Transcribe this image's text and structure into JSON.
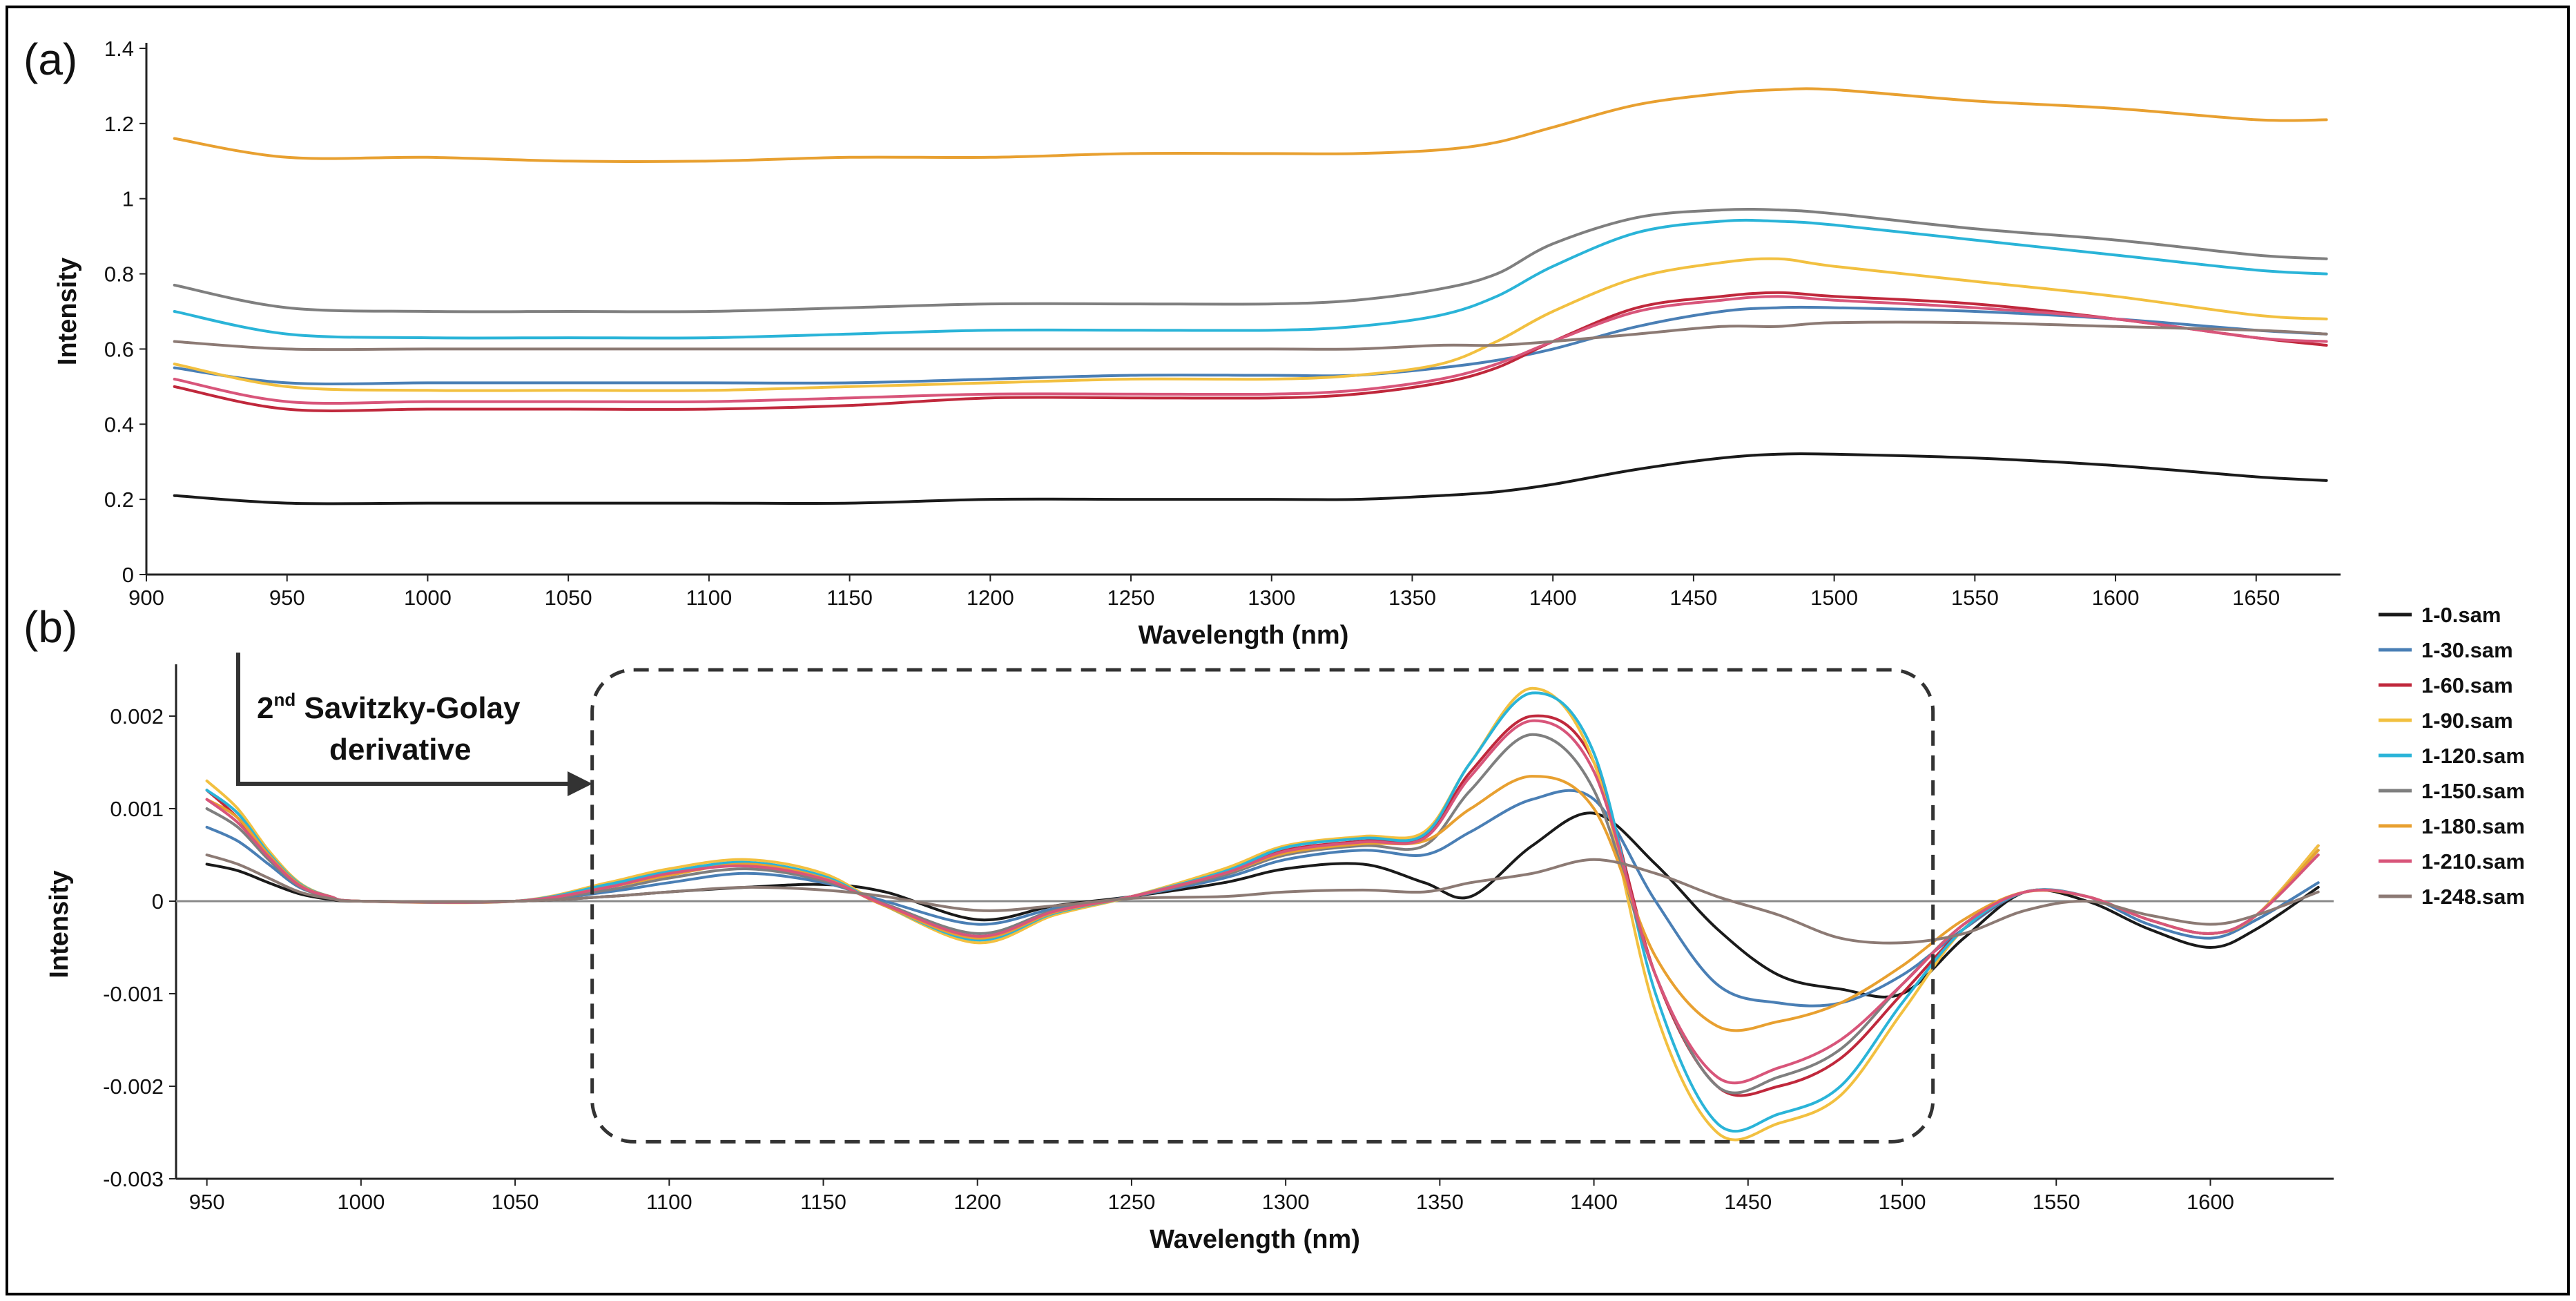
{
  "chart_data": [
    {
      "id": "a",
      "type": "line",
      "panel_label": "(a)",
      "xlabel": "Wavelength (nm)",
      "ylabel": "Intensity",
      "xlim": [
        900,
        1680
      ],
      "ylim": [
        0,
        1.4
      ],
      "x_ticks": [
        900,
        950,
        1000,
        1050,
        1100,
        1150,
        1200,
        1250,
        1300,
        1350,
        1400,
        1450,
        1500,
        1550,
        1600,
        1650
      ],
      "y_ticks": [
        {
          "value": 0,
          "label": "0"
        },
        {
          "value": 0.2,
          "label": "0.2"
        },
        {
          "value": 0.4,
          "label": "0.4"
        },
        {
          "value": 0.6,
          "label": "0.6"
        },
        {
          "value": 0.8,
          "label": "0.8"
        },
        {
          "value": 1.0,
          "label": "1"
        },
        {
          "value": 1.2,
          "label": "1.2"
        },
        {
          "value": 1.4,
          "label": "1.4"
        }
      ],
      "x": [
        910,
        950,
        1000,
        1050,
        1100,
        1150,
        1200,
        1250,
        1300,
        1330,
        1360,
        1380,
        1400,
        1430,
        1460,
        1480,
        1500,
        1550,
        1600,
        1650,
        1675
      ],
      "series": [
        {
          "name": "1-0.sam",
          "color": "#1a1a1a",
          "values": [
            0.21,
            0.19,
            0.19,
            0.19,
            0.19,
            0.19,
            0.2,
            0.2,
            0.2,
            0.2,
            0.21,
            0.22,
            0.24,
            0.28,
            0.31,
            0.32,
            0.32,
            0.31,
            0.29,
            0.26,
            0.25
          ]
        },
        {
          "name": "1-30.sam",
          "color": "#4a7fb5",
          "values": [
            0.55,
            0.51,
            0.51,
            0.51,
            0.51,
            0.51,
            0.52,
            0.53,
            0.53,
            0.53,
            0.55,
            0.57,
            0.6,
            0.66,
            0.7,
            0.71,
            0.71,
            0.7,
            0.68,
            0.65,
            0.64
          ]
        },
        {
          "name": "1-60.sam",
          "color": "#c0283c",
          "values": [
            0.5,
            0.44,
            0.44,
            0.44,
            0.44,
            0.45,
            0.47,
            0.47,
            0.47,
            0.48,
            0.51,
            0.55,
            0.62,
            0.71,
            0.74,
            0.75,
            0.74,
            0.72,
            0.68,
            0.63,
            0.61
          ]
        },
        {
          "name": "1-90.sam",
          "color": "#f2c040",
          "values": [
            0.56,
            0.5,
            0.49,
            0.49,
            0.49,
            0.5,
            0.51,
            0.52,
            0.52,
            0.53,
            0.56,
            0.62,
            0.7,
            0.79,
            0.83,
            0.84,
            0.82,
            0.78,
            0.74,
            0.69,
            0.68
          ]
        },
        {
          "name": "1-120.sam",
          "color": "#2ab4d8",
          "values": [
            0.7,
            0.64,
            0.63,
            0.63,
            0.63,
            0.64,
            0.65,
            0.65,
            0.65,
            0.66,
            0.69,
            0.74,
            0.82,
            0.91,
            0.94,
            0.94,
            0.93,
            0.89,
            0.85,
            0.81,
            0.8
          ]
        },
        {
          "name": "1-150.sam",
          "color": "#7f7f7f",
          "values": [
            0.77,
            0.71,
            0.7,
            0.7,
            0.7,
            0.71,
            0.72,
            0.72,
            0.72,
            0.73,
            0.76,
            0.8,
            0.88,
            0.95,
            0.97,
            0.97,
            0.96,
            0.92,
            0.89,
            0.85,
            0.84
          ]
        },
        {
          "name": "1-180.sam",
          "color": "#e8a030",
          "values": [
            1.16,
            1.11,
            1.11,
            1.1,
            1.1,
            1.11,
            1.11,
            1.12,
            1.12,
            1.12,
            1.13,
            1.15,
            1.19,
            1.25,
            1.28,
            1.29,
            1.29,
            1.26,
            1.24,
            1.21,
            1.21
          ]
        },
        {
          "name": "1-210.sam",
          "color": "#d8557a",
          "values": [
            0.52,
            0.46,
            0.46,
            0.46,
            0.46,
            0.47,
            0.48,
            0.48,
            0.48,
            0.49,
            0.52,
            0.56,
            0.62,
            0.7,
            0.73,
            0.74,
            0.73,
            0.71,
            0.68,
            0.63,
            0.62
          ]
        },
        {
          "name": "1-248.sam",
          "color": "#8c7a74",
          "values": [
            0.62,
            0.6,
            0.6,
            0.6,
            0.6,
            0.6,
            0.6,
            0.6,
            0.6,
            0.6,
            0.61,
            0.61,
            0.62,
            0.64,
            0.66,
            0.66,
            0.67,
            0.67,
            0.66,
            0.65,
            0.64
          ]
        }
      ]
    },
    {
      "id": "b",
      "type": "line",
      "panel_label": "(b)",
      "xlabel": "Wavelength (nm)",
      "ylabel": "Intensity",
      "xlim": [
        940,
        1640
      ],
      "ylim": [
        -0.003,
        0.0025
      ],
      "x_ticks": [
        950,
        1000,
        1050,
        1100,
        1150,
        1200,
        1250,
        1300,
        1350,
        1400,
        1450,
        1500,
        1550,
        1600
      ],
      "y_ticks": [
        {
          "value": -0.003,
          "label": "-0.003"
        },
        {
          "value": -0.002,
          "label": "-0.002"
        },
        {
          "value": -0.001,
          "label": "-0.001"
        },
        {
          "value": 0,
          "label": "0"
        },
        {
          "value": 0.001,
          "label": "0.001"
        },
        {
          "value": 0.002,
          "label": "0.002"
        }
      ],
      "zero_line": true,
      "annotation": {
        "text_main": "2",
        "text_sup": "nd",
        "text_rest": " Savitzky-Golay",
        "text_line2": "derivative"
      },
      "highlight_region": {
        "x_range": [
          1075,
          1510
        ],
        "y_range": [
          -0.0026,
          0.0025
        ],
        "style": "dashed rounded box"
      },
      "x": [
        950,
        960,
        970,
        980,
        990,
        1000,
        1050,
        1080,
        1100,
        1125,
        1150,
        1170,
        1200,
        1225,
        1250,
        1280,
        1300,
        1325,
        1345,
        1360,
        1380,
        1400,
        1420,
        1440,
        1460,
        1480,
        1500,
        1520,
        1540,
        1560,
        1580,
        1600,
        1615,
        1635
      ],
      "series": [
        {
          "name": "1-0.sam",
          "color": "#1a1a1a",
          "values": [
            0.0004,
            0.00033,
            0.0002,
            8e-05,
            2e-05,
            0.0,
            0.0,
            5e-05,
            0.0001,
            0.00015,
            0.00018,
            0.0001,
            -0.0002,
            -5e-05,
            5e-05,
            0.0002,
            0.00035,
            0.0004,
            0.0002,
            5e-05,
            0.0006,
            0.00095,
            0.0004,
            -0.0003,
            -0.0008,
            -0.00095,
            -0.001,
            -0.0004,
            0.0001,
            0.0,
            -0.0003,
            -0.0005,
            -0.0003,
            0.00015
          ]
        },
        {
          "name": "1-30.sam",
          "color": "#4a7fb5",
          "values": [
            0.0008,
            0.00065,
            0.0004,
            0.00015,
            5e-05,
            0.0,
            0.0,
            0.0001,
            0.0002,
            0.0003,
            0.0002,
            0.0,
            -0.00025,
            -8e-05,
            5e-05,
            0.00025,
            0.00045,
            0.00055,
            0.0005,
            0.00075,
            0.0011,
            0.0011,
            0.0,
            -0.0009,
            -0.0011,
            -0.0011,
            -0.0008,
            -0.0003,
            0.0001,
            5e-05,
            -0.00025,
            -0.0004,
            -0.0002,
            0.0002
          ]
        },
        {
          "name": "1-60.sam",
          "color": "#c0283c",
          "values": [
            0.0012,
            0.0009,
            0.0005,
            0.00018,
            5e-05,
            0.0,
            0.0,
            0.00015,
            0.0003,
            0.0004,
            0.00025,
            -5e-05,
            -0.0004,
            -0.00012,
            5e-05,
            0.0003,
            0.00055,
            0.00065,
            0.0007,
            0.0014,
            0.002,
            0.0015,
            -0.0008,
            -0.002,
            -0.002,
            -0.0017,
            -0.001,
            -0.0003,
            0.0001,
            5e-05,
            -0.0002,
            -0.00035,
            -0.00015,
            0.0006
          ]
        },
        {
          "name": "1-90.sam",
          "color": "#f2c040",
          "values": [
            0.0013,
            0.001,
            0.00055,
            0.0002,
            5e-05,
            0.0,
            0.0,
            0.0002,
            0.00035,
            0.00045,
            0.0003,
            -5e-05,
            -0.00045,
            -0.00015,
            5e-05,
            0.00035,
            0.0006,
            0.0007,
            0.00075,
            0.0015,
            0.0023,
            0.0015,
            -0.0012,
            -0.0025,
            -0.0024,
            -0.0021,
            -0.0012,
            -0.0003,
            0.0001,
            5e-05,
            -0.0002,
            -0.00035,
            -0.00015,
            0.0006
          ]
        },
        {
          "name": "1-120.sam",
          "color": "#2ab4d8",
          "values": [
            0.0012,
            0.00095,
            0.00052,
            0.00019,
            5e-05,
            0.0,
            0.0,
            0.00018,
            0.00032,
            0.00042,
            0.00027,
            -5e-05,
            -0.00042,
            -0.00013,
            5e-05,
            0.00032,
            0.00058,
            0.00068,
            0.00072,
            0.0015,
            0.00225,
            0.0016,
            -0.001,
            -0.0024,
            -0.0023,
            -0.002,
            -0.0011,
            -0.0003,
            0.0001,
            5e-05,
            -0.0002,
            -0.00035,
            -0.00015,
            0.00055
          ]
        },
        {
          "name": "1-150.sam",
          "color": "#7f7f7f",
          "values": [
            0.001,
            0.0008,
            0.00045,
            0.00016,
            4e-05,
            0.0,
            0.0,
            0.00012,
            0.00025,
            0.00035,
            0.00022,
            -3e-05,
            -0.00035,
            -0.0001,
            5e-05,
            0.00028,
            0.0005,
            0.0006,
            0.0006,
            0.0012,
            0.0018,
            0.0012,
            -0.0008,
            -0.002,
            -0.0019,
            -0.0016,
            -0.0009,
            -0.00025,
            0.0001,
            5e-05,
            -0.0002,
            -0.00035,
            -0.00015,
            0.0005
          ]
        },
        {
          "name": "1-180.sam",
          "color": "#e8a030",
          "values": [
            0.0011,
            0.0009,
            0.0005,
            0.00018,
            5e-05,
            0.0,
            0.0,
            0.00015,
            0.00028,
            0.0004,
            0.00025,
            -5e-05,
            -0.0004,
            -0.00012,
            5e-05,
            0.0003,
            0.00052,
            0.00062,
            0.00065,
            0.001,
            0.00135,
            0.001,
            -0.0006,
            -0.00135,
            -0.0013,
            -0.0011,
            -0.0007,
            -0.0002,
            0.0001,
            5e-05,
            -0.0002,
            -0.00035,
            -0.00015,
            0.00055
          ]
        },
        {
          "name": "1-210.sam",
          "color": "#d8557a",
          "values": [
            0.0011,
            0.00085,
            0.00048,
            0.00017,
            5e-05,
            0.0,
            0.0,
            0.00015,
            0.0003,
            0.00038,
            0.00024,
            -4e-05,
            -0.00038,
            -0.00011,
            5e-05,
            0.0003,
            0.00054,
            0.00064,
            0.00068,
            0.00135,
            0.00195,
            0.0014,
            -0.0008,
            -0.0019,
            -0.0018,
            -0.0015,
            -0.0009,
            -0.00025,
            0.0001,
            5e-05,
            -0.0002,
            -0.00035,
            -0.00015,
            0.0005
          ]
        },
        {
          "name": "1-248.sam",
          "color": "#8c7a74",
          "values": [
            0.0005,
            0.0004,
            0.00025,
            0.0001,
            3e-05,
            0.0,
            0.0,
            5e-05,
            0.0001,
            0.00015,
            0.00012,
            5e-05,
            -0.0001,
            -5e-05,
            3e-05,
            5e-05,
            0.0001,
            0.00012,
            0.0001,
            0.0002,
            0.0003,
            0.00045,
            0.0003,
            5e-05,
            -0.00015,
            -0.0004,
            -0.00045,
            -0.00035,
            -0.0001,
            0.0,
            -0.00015,
            -0.00025,
            -0.00015,
            0.0001
          ]
        }
      ]
    }
  ]
}
